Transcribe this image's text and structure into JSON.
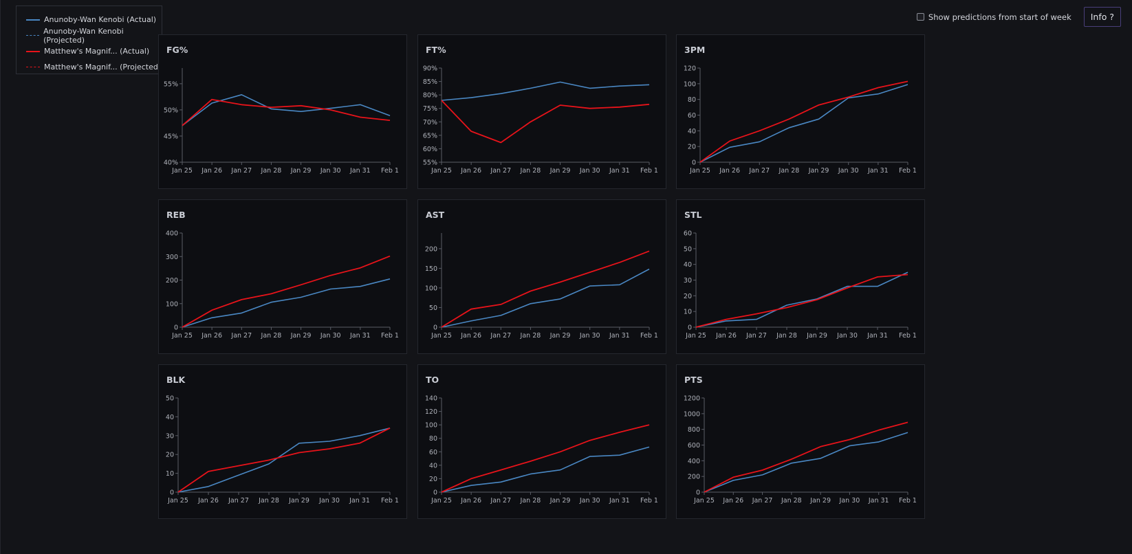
{
  "legend": {
    "items": [
      {
        "label": "Anunoby-Wan Kenobi (Actual)",
        "color": "#4a88c4",
        "style": "solid"
      },
      {
        "label": "Anunoby-Wan Kenobi (Projected)",
        "color": "#4a88c4",
        "style": "dashed"
      },
      {
        "label": "Matthew's Magnif... (Actual)",
        "color": "#e8131a",
        "style": "solid"
      },
      {
        "label": "Matthew's Magnif... (Projected)",
        "color": "#e8131a",
        "style": "dashed"
      }
    ]
  },
  "controls": {
    "show_predictions_label": "Show predictions from start of week",
    "info_label": "Info ?"
  },
  "colors": {
    "team_a": "#4a88c4",
    "team_b": "#e8131a",
    "axis": "#5a5d66",
    "tick_text": "#b0b3bb"
  },
  "chart_data": [
    {
      "type": "line",
      "title": "FG%",
      "x": [
        "Jan 25",
        "Jan 26",
        "Jan 27",
        "Jan 28",
        "Jan 29",
        "Jan 30",
        "Jan 31",
        "Feb 1"
      ],
      "ylim": [
        40,
        58
      ],
      "yticks": [
        40,
        45,
        50,
        55
      ],
      "ytick_suffix": "%",
      "series": [
        {
          "name": "Anunoby-Wan Kenobi (Actual)",
          "values": [
            47,
            51.3,
            52.9,
            50.2,
            49.7,
            50.3,
            51,
            48.9
          ]
        },
        {
          "name": "Matthew's Magnif... (Actual)",
          "values": [
            47,
            52,
            51,
            50.5,
            50.8,
            50,
            48.6,
            48
          ]
        }
      ]
    },
    {
      "type": "line",
      "title": "FT%",
      "x": [
        "Jan 25",
        "Jan 26",
        "Jan 27",
        "Jan 28",
        "Jan 29",
        "Jan 30",
        "Jan 31",
        "Feb 1"
      ],
      "ylim": [
        55,
        90
      ],
      "yticks": [
        55,
        60,
        65,
        70,
        75,
        80,
        85,
        90
      ],
      "ytick_suffix": "%",
      "series": [
        {
          "name": "Anunoby-Wan Kenobi (Actual)",
          "values": [
            78,
            79,
            80.5,
            82.5,
            84.8,
            82.5,
            83.3,
            83.8
          ]
        },
        {
          "name": "Matthew's Magnif... (Actual)",
          "values": [
            78,
            66.5,
            62.3,
            70,
            76.2,
            75,
            75.5,
            76.5
          ]
        }
      ]
    },
    {
      "type": "line",
      "title": "3PM",
      "x": [
        "Jan 25",
        "Jan 26",
        "Jan 27",
        "Jan 28",
        "Jan 29",
        "Jan 30",
        "Jan 31",
        "Feb 1"
      ],
      "ylim": [
        0,
        120
      ],
      "yticks": [
        0,
        20,
        40,
        60,
        80,
        100,
        120
      ],
      "ytick_suffix": "",
      "series": [
        {
          "name": "Anunoby-Wan Kenobi (Actual)",
          "values": [
            0,
            19,
            26,
            44,
            55,
            82,
            87,
            99
          ]
        },
        {
          "name": "Matthew's Magnif... (Actual)",
          "values": [
            0,
            27,
            40,
            55,
            73,
            83,
            95,
            103
          ]
        }
      ]
    },
    {
      "type": "line",
      "title": "REB",
      "x": [
        "Jan 25",
        "Jan 26",
        "Jan 27",
        "Jan 28",
        "Jan 29",
        "Jan 30",
        "Jan 31",
        "Feb 1"
      ],
      "ylim": [
        0,
        400
      ],
      "yticks": [
        0,
        100,
        200,
        300,
        400
      ],
      "ytick_suffix": "",
      "series": [
        {
          "name": "Anunoby-Wan Kenobi (Actual)",
          "values": [
            0,
            40,
            60,
            106,
            127,
            162,
            173,
            205
          ]
        },
        {
          "name": "Matthew's Magnif... (Actual)",
          "values": [
            0,
            72,
            117,
            142,
            180,
            220,
            252,
            302
          ]
        }
      ]
    },
    {
      "type": "line",
      "title": "AST",
      "x": [
        "Jan 25",
        "Jan 26",
        "Jan 27",
        "Jan 28",
        "Jan 29",
        "Jan 30",
        "Jan 31",
        "Feb 1"
      ],
      "ylim": [
        0,
        240
      ],
      "yticks": [
        0,
        50,
        100,
        150,
        200
      ],
      "ytick_suffix": "",
      "series": [
        {
          "name": "Anunoby-Wan Kenobi (Actual)",
          "values": [
            0,
            16,
            30,
            60,
            72,
            105,
            108,
            148
          ]
        },
        {
          "name": "Matthew's Magnif... (Actual)",
          "values": [
            0,
            46,
            58,
            92,
            115,
            140,
            165,
            194
          ]
        }
      ]
    },
    {
      "type": "line",
      "title": "STL",
      "x": [
        "Jan 25",
        "Jan 26",
        "Jan 27",
        "Jan 28",
        "Jan 29",
        "Jan 30",
        "Jan 31",
        "Feb 1"
      ],
      "ylim": [
        0,
        60
      ],
      "yticks": [
        0,
        10,
        20,
        30,
        40,
        50,
        60
      ],
      "ytick_suffix": "",
      "series": [
        {
          "name": "Anunoby-Wan Kenobi (Actual)",
          "values": [
            0,
            4,
            5,
            14,
            18,
            26,
            26,
            35
          ]
        },
        {
          "name": "Matthew's Magnif... (Actual)",
          "values": [
            0,
            5,
            8.5,
            12.5,
            17.5,
            25,
            32,
            33.5
          ]
        }
      ]
    },
    {
      "type": "line",
      "title": "BLK",
      "x": [
        "Jan 25",
        "Jan 26",
        "Jan 27",
        "Jan 28",
        "Jan 29",
        "Jan 30",
        "Jan 31",
        "Feb 1"
      ],
      "ylim": [
        0,
        50
      ],
      "yticks": [
        0,
        10,
        20,
        30,
        40,
        50
      ],
      "ytick_suffix": "",
      "series": [
        {
          "name": "Anunoby-Wan Kenobi (Actual)",
          "values": [
            0,
            3,
            9,
            15,
            26,
            27,
            30,
            34
          ]
        },
        {
          "name": "Matthew's Magnif... (Actual)",
          "values": [
            0,
            11,
            14,
            17,
            21,
            23,
            26,
            34
          ]
        }
      ]
    },
    {
      "type": "line",
      "title": "TO",
      "x": [
        "Jan 25",
        "Jan 26",
        "Jan 27",
        "Jan 28",
        "Jan 29",
        "Jan 30",
        "Jan 31",
        "Feb 1"
      ],
      "ylim": [
        0,
        140
      ],
      "yticks": [
        0,
        20,
        40,
        60,
        80,
        100,
        120,
        140
      ],
      "ytick_suffix": "",
      "series": [
        {
          "name": "Anunoby-Wan Kenobi (Actual)",
          "values": [
            0,
            10,
            15,
            27,
            33,
            53,
            55,
            67
          ]
        },
        {
          "name": "Matthew's Magnif... (Actual)",
          "values": [
            0,
            20,
            33,
            46,
            60,
            77,
            89,
            100
          ]
        }
      ]
    },
    {
      "type": "line",
      "title": "PTS",
      "x": [
        "Jan 25",
        "Jan 26",
        "Jan 27",
        "Jan 28",
        "Jan 29",
        "Jan 30",
        "Jan 31",
        "Feb 1"
      ],
      "ylim": [
        0,
        1200
      ],
      "yticks": [
        0,
        200,
        400,
        600,
        800,
        1000,
        1200
      ],
      "ytick_suffix": "",
      "series": [
        {
          "name": "Anunoby-Wan Kenobi (Actual)",
          "values": [
            0,
            150,
            220,
            370,
            430,
            590,
            640,
            760
          ]
        },
        {
          "name": "Matthew's Magnif... (Actual)",
          "values": [
            0,
            190,
            280,
            420,
            580,
            670,
            790,
            890
          ]
        }
      ]
    }
  ]
}
